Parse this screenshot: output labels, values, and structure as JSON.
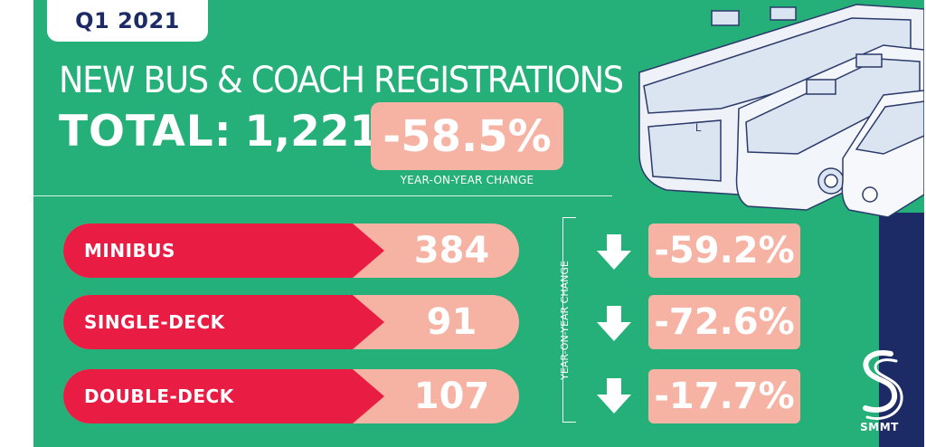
{
  "period": "Q1 2021",
  "heading": "NEW BUS & COACH REGISTRATIONS",
  "total": {
    "label": "TOTAL:",
    "value": "1,221",
    "change": "-58.5%",
    "change_caption": "YEAR-ON-YEAR CHANGE"
  },
  "yoy_label": "YEAR-ON-YEAR CHANGE",
  "categories": [
    {
      "label": "MINIBUS",
      "value": "384",
      "change": "-59.2%"
    },
    {
      "label": "SINGLE-DECK",
      "value": "91",
      "change": "-72.6%"
    },
    {
      "label": "DOUBLE-DECK",
      "value": "107",
      "change": "-17.7%"
    }
  ],
  "logo_text": "SMMT",
  "colors": {
    "background": "#26b079",
    "accent_red": "#e91c44",
    "salmon": "#f6b3a3",
    "navy": "#1c2b66"
  }
}
